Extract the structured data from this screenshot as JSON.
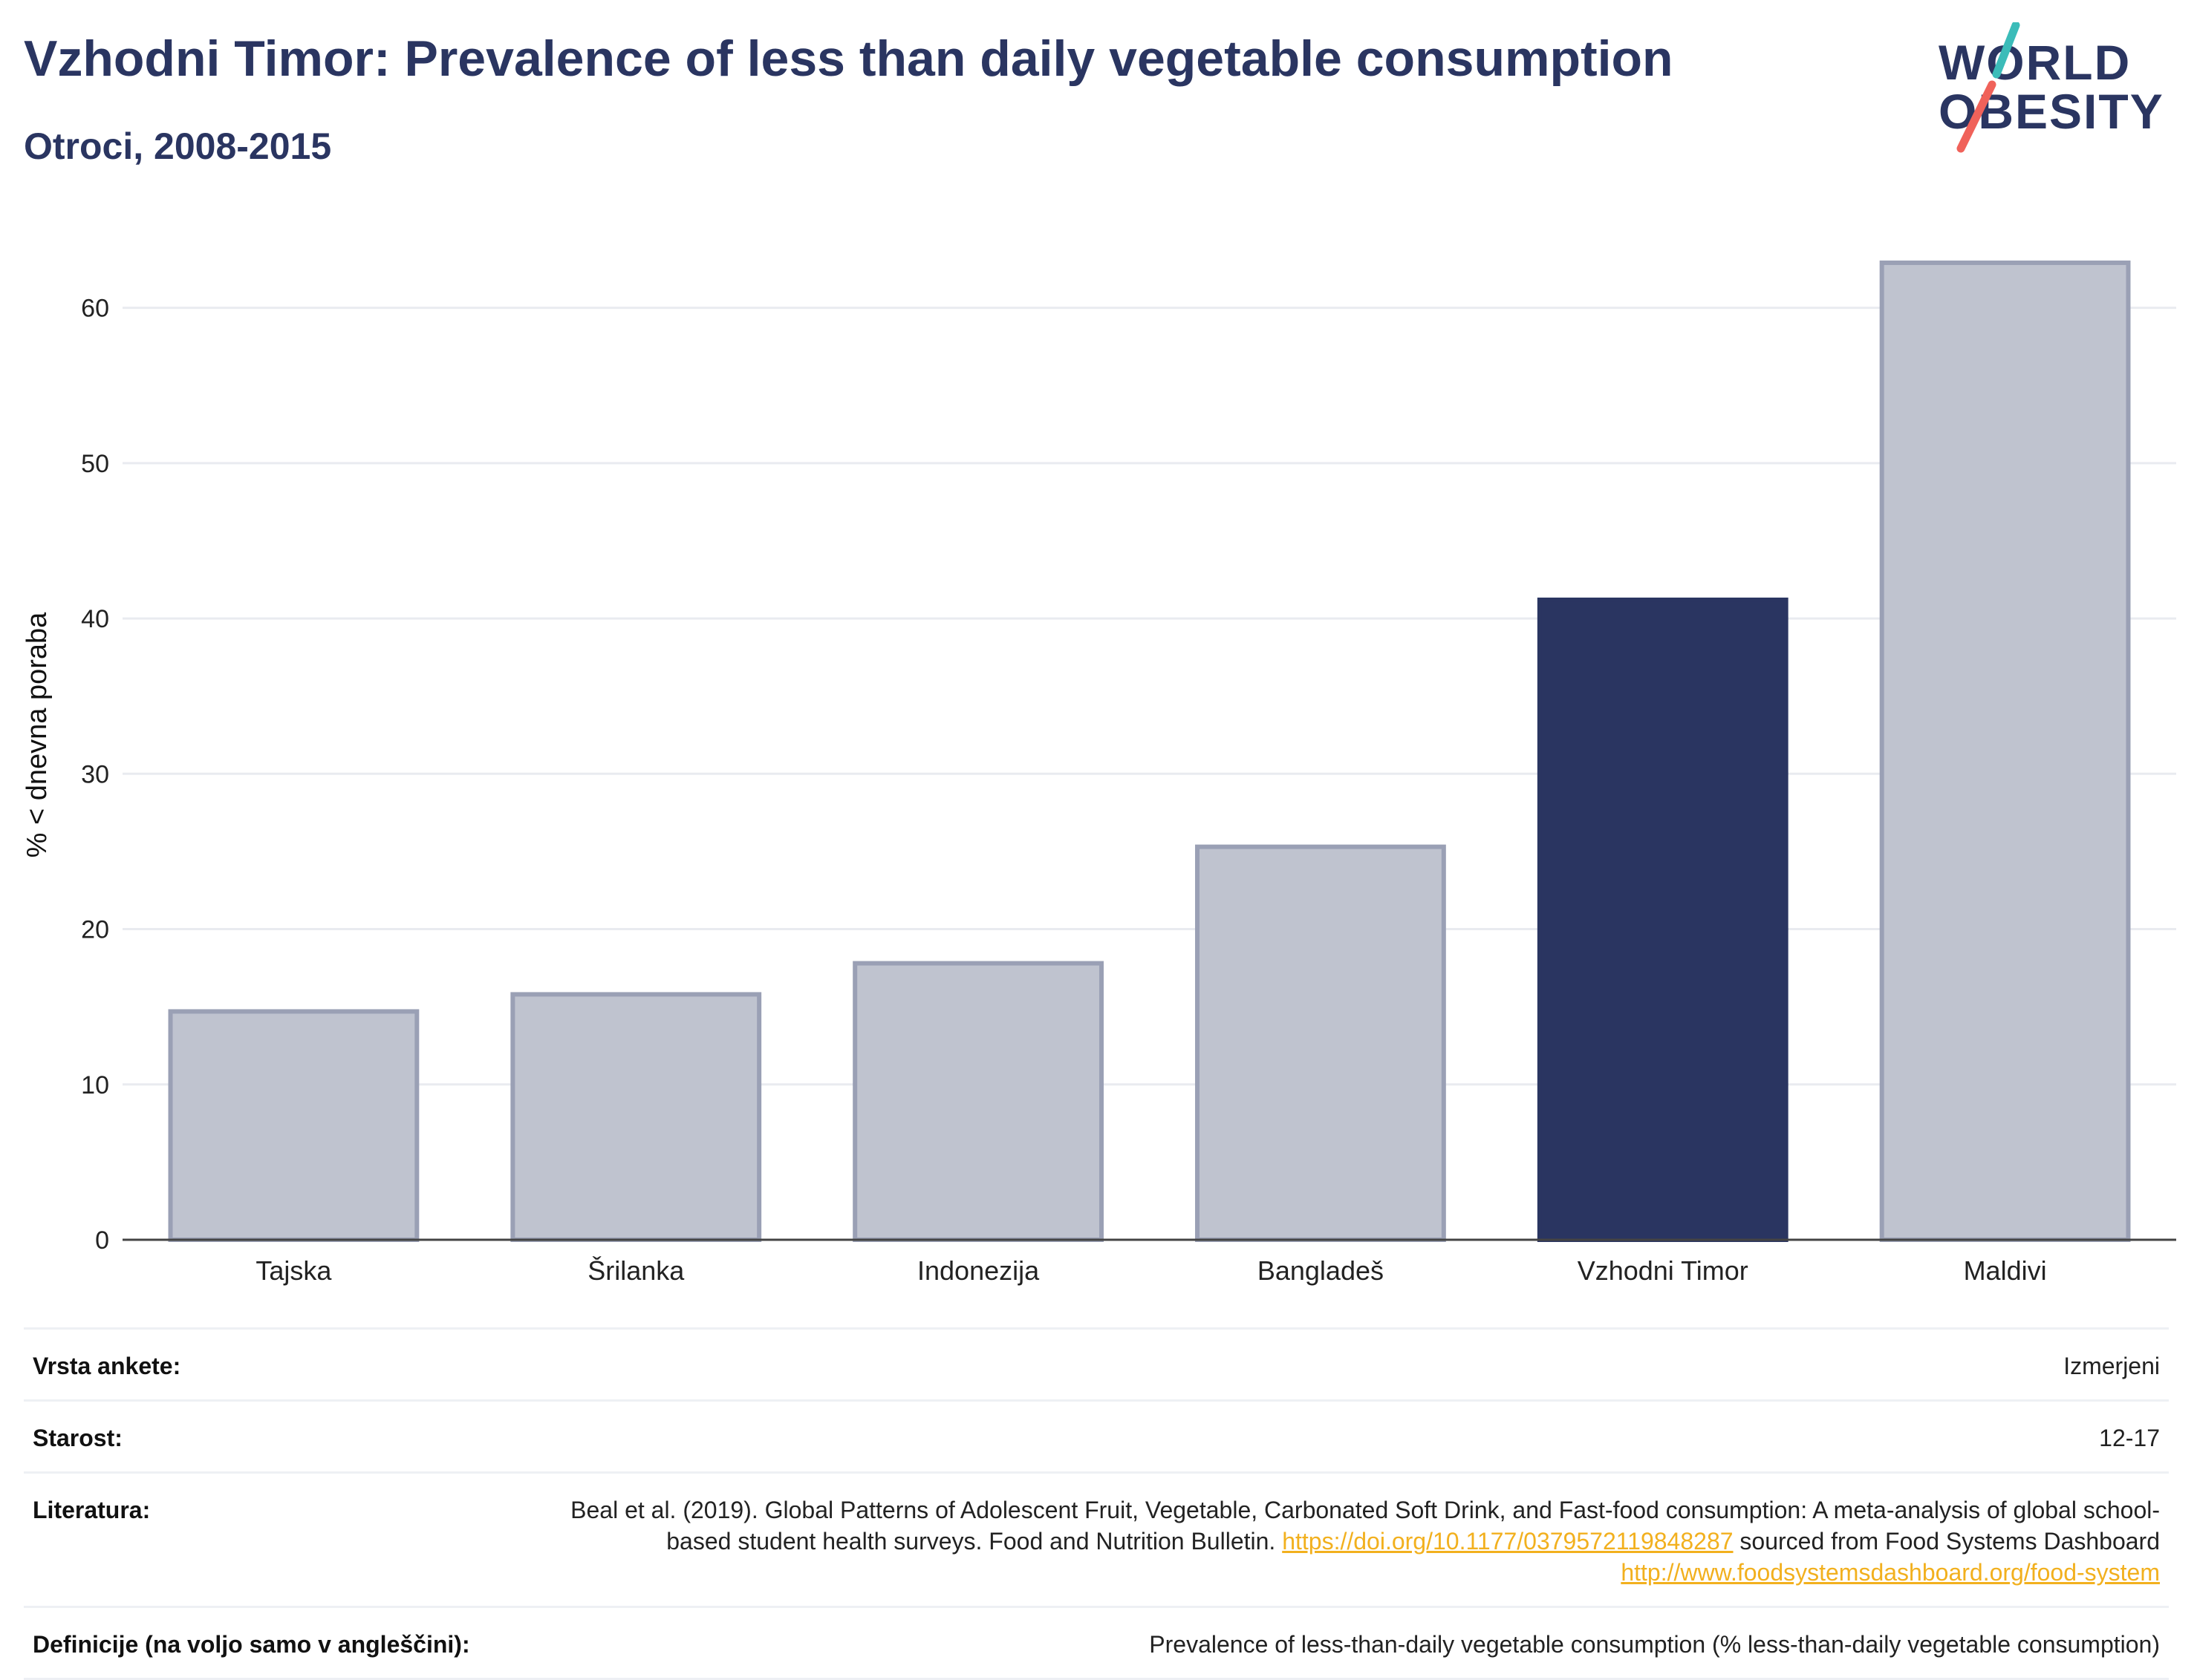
{
  "header": {
    "title": "Vzhodni Timor: Prevalence of less than daily vegetable consumption",
    "subtitle": "Otroci, 2008-2015"
  },
  "logo": {
    "line1": "WORLD",
    "line2": "OBESITY",
    "colors": {
      "text": "#2a3561",
      "slash_top": "#3bbcb9",
      "slash_bottom": "#f0625a"
    }
  },
  "chart_data": {
    "type": "bar",
    "categories": [
      "Tajska",
      "Šrilanka",
      "Indonezija",
      "Bangladeš",
      "Vzhodni Timor",
      "Maldivi"
    ],
    "values": [
      14.7,
      15.8,
      17.8,
      25.3,
      41.2,
      62.9
    ],
    "highlight_index": 4,
    "title": "",
    "xlabel": "",
    "ylabel": "% < dnevna poraba",
    "ylim": [
      0,
      65
    ],
    "yticks": [
      0,
      10,
      20,
      30,
      40,
      50,
      60
    ],
    "grid": true,
    "legend": "none",
    "colors": {
      "bar": "#bfc3cf",
      "bar_border": "#9aa0b5",
      "highlight": "#2a3561",
      "grid": "#e9ebf0",
      "axis": "#444444"
    }
  },
  "meta": {
    "rows": [
      {
        "label": "Vrsta ankete:",
        "value": "Izmerjeni"
      },
      {
        "label": "Starost:",
        "value": "12-17"
      },
      {
        "label": "Literatura:",
        "text1": "Beal et al. (2019). Global Patterns of Adolescent Fruit, Vegetable, Carbonated Soft Drink, and Fast-food consumption: A meta-analysis of global school-based student health surveys. Food and Nutrition Bulletin.",
        "link1": "https://doi.org/10.1177/0379572119848287",
        "text2": "sourced from Food Systems Dashboard",
        "link2": "http://www.foodsystemsdashboard.org/food-system"
      },
      {
        "label": "Definicije (na voljo samo v angleščini):",
        "value": "Prevalence of less-than-daily vegetable consumption (% less-than-daily vegetable consumption)"
      }
    ]
  }
}
